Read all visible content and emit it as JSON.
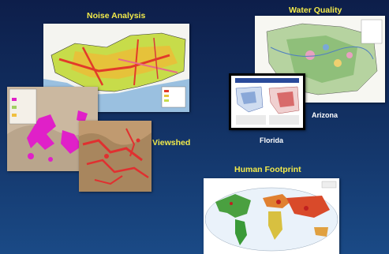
{
  "labels": {
    "noise": "Noise Analysis",
    "water": "Water Quality",
    "arizona": "Arizona",
    "florida": "Florida",
    "viewshed": "Viewshed",
    "human": "Human Footprint"
  },
  "colors": {
    "accent_yellow": "#f2ea4a",
    "label_white": "#ffffff",
    "background_top": "#0d1e4a",
    "background_bottom": "#1a4a86"
  }
}
